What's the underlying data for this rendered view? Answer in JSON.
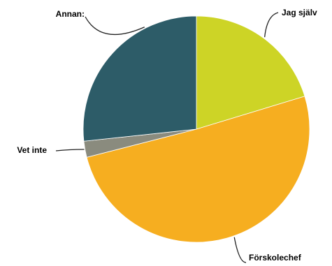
{
  "chart_data": {
    "type": "pie",
    "title": "",
    "start_angle_deg": 0,
    "direction": "clockwise",
    "slices": [
      {
        "label": "Jag själv",
        "value": 20.3,
        "color": "#cdd426"
      },
      {
        "label": "Förskolechef",
        "value": 50.7,
        "color": "#f6ae20"
      },
      {
        "label": "Vet inte",
        "value": 2.3,
        "color": "#8a8b7e"
      },
      {
        "label": "Annan:",
        "value": 26.7,
        "color": "#2d5c68"
      }
    ]
  }
}
